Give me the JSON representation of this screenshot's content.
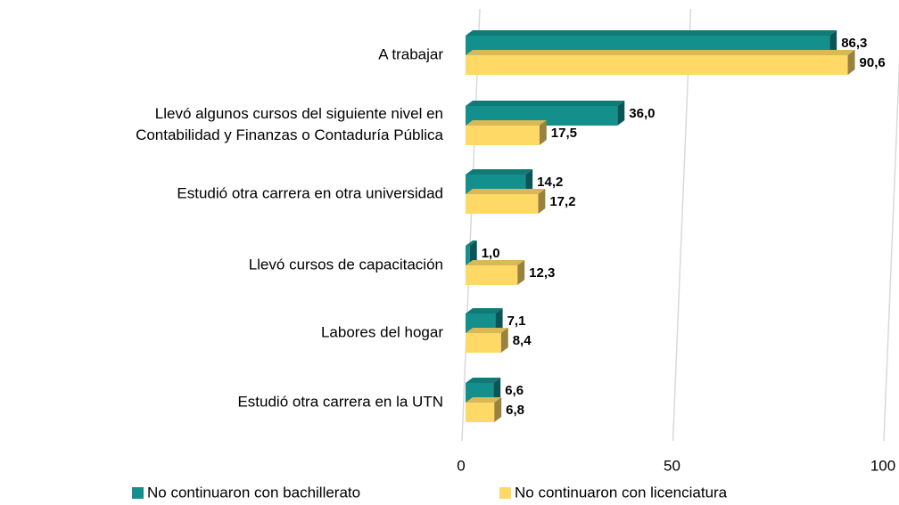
{
  "chart_data": {
    "type": "bar",
    "orientation": "horizontal",
    "categories": [
      "A trabajar",
      "Llevó algunos cursos del siguiente nivel en\nContabilidad y Finanzas o Contaduría Pública",
      "Estudió otra carrera en otra universidad",
      "Llevó cursos de capacitación",
      "Labores del hogar",
      "Estudió otra carrera en la UTN"
    ],
    "series": [
      {
        "name": "No continuaron con bachillerato",
        "color": "#138f8c",
        "values": [
          86.3,
          36.0,
          14.2,
          1.0,
          7.1,
          6.6
        ],
        "value_labels": [
          "86,3",
          "36,0",
          "14,2",
          "1,0",
          "7,1",
          "6,6"
        ]
      },
      {
        "name": "No continuaron con licenciatura",
        "color": "#ffd966",
        "values": [
          90.6,
          17.5,
          17.2,
          12.3,
          8.4,
          6.8
        ],
        "value_labels": [
          "90,6",
          "17,5",
          "17,2",
          "12,3",
          "8,4",
          "6,8"
        ]
      }
    ],
    "xlim": [
      0,
      100
    ],
    "xticks": [
      0,
      50,
      100
    ],
    "grid": true,
    "legend": "bottom"
  }
}
